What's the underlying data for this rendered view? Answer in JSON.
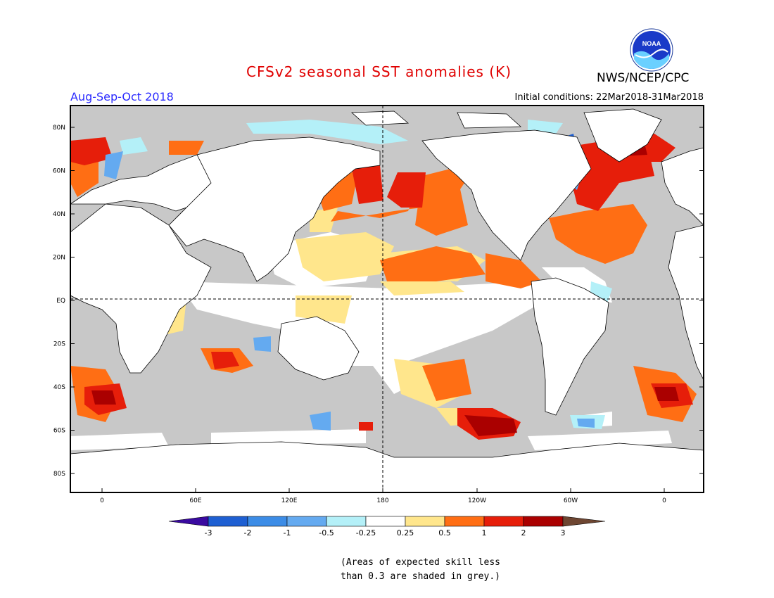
{
  "header": {
    "title": "CFSv2 seasonal SST anomalies (K)",
    "period": "Aug-Sep-Oct 2018",
    "initial_conditions": "Initial conditions: 22Mar2018-31Mar2018",
    "agency": "NWS/NCEP/CPC",
    "logo_text": "NOAA"
  },
  "map": {
    "lat_labels": [
      "80N",
      "60N",
      "40N",
      "20N",
      "EQ",
      "20S",
      "40S",
      "60S",
      "80S"
    ],
    "lon_labels": [
      "0",
      "60E",
      "120E",
      "180",
      "120W",
      "60W",
      "0"
    ],
    "colors": {
      "no_skill": "#c8c8c8",
      "land": "#ffffff",
      "coast": "#000000"
    }
  },
  "colorbar": {
    "tick_labels": [
      "-3",
      "-2",
      "-1",
      "-0.5",
      "-0.25",
      "0.25",
      "0.5",
      "1",
      "2",
      "3"
    ],
    "colors": [
      "#3a0aa0",
      "#1e5fd2",
      "#3c8ce6",
      "#64aaf0",
      "#b4f0f8",
      "#ffffff",
      "#ffe68c",
      "#ff6e14",
      "#e61e0a",
      "#aa0000",
      "#6e4632"
    ]
  },
  "note": {
    "line1": "(Areas of expected skill less",
    "line2": "than 0.3 are shaded in grey.)"
  }
}
